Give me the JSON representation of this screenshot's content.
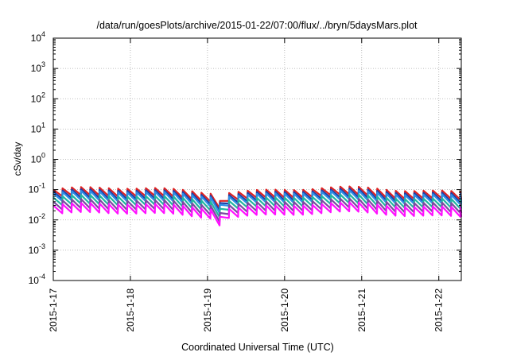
{
  "chart_data": {
    "type": "line",
    "title": "/data/run/goesPlots/archive/2015-01-22/07:00/flux/../bryn/5daysMars.plot",
    "xlabel": "Coordinated Universal Time (UTC)",
    "ylabel": "cSv/day",
    "x_tick_labels": [
      "2015-1-17",
      "2015-1-18",
      "2015-1-19",
      "2015-1-20",
      "2015-1-21",
      "2015-1-22"
    ],
    "xlim": [
      "2015-01-17",
      "2015-01-22 07:00"
    ],
    "y_scale": "log",
    "ylim": [
      0.0001,
      10000
    ],
    "y_ticks": [
      {
        "base": "10",
        "exp": "-4"
      },
      {
        "base": "10",
        "exp": "-3"
      },
      {
        "base": "10",
        "exp": "-2"
      },
      {
        "base": "10",
        "exp": "-1"
      },
      {
        "base": "10",
        "exp": "0"
      },
      {
        "base": "10",
        "exp": "1"
      },
      {
        "base": "10",
        "exp": "2"
      },
      {
        "base": "10",
        "exp": "3"
      },
      {
        "base": "10",
        "exp": "4"
      }
    ],
    "grid": true,
    "legend": "none",
    "sawtooth_cycles_per_day": 8.33,
    "dip_date": "2015-01-19 04:00",
    "series": [
      {
        "color": "#dd2222",
        "peak": 0.1,
        "trough": 0.055
      },
      {
        "color": "#1f3fa8",
        "peak": 0.085,
        "trough": 0.045
      },
      {
        "color": "#2d8fe6",
        "peak": 0.075,
        "trough": 0.038
      },
      {
        "color": "#22b5a0",
        "peak": 0.055,
        "trough": 0.028
      },
      {
        "color": "#7a4aa0",
        "peak": 0.04,
        "trough": 0.02
      },
      {
        "color": "#ff10ff",
        "peak": 0.03,
        "trough": 0.015
      }
    ]
  }
}
